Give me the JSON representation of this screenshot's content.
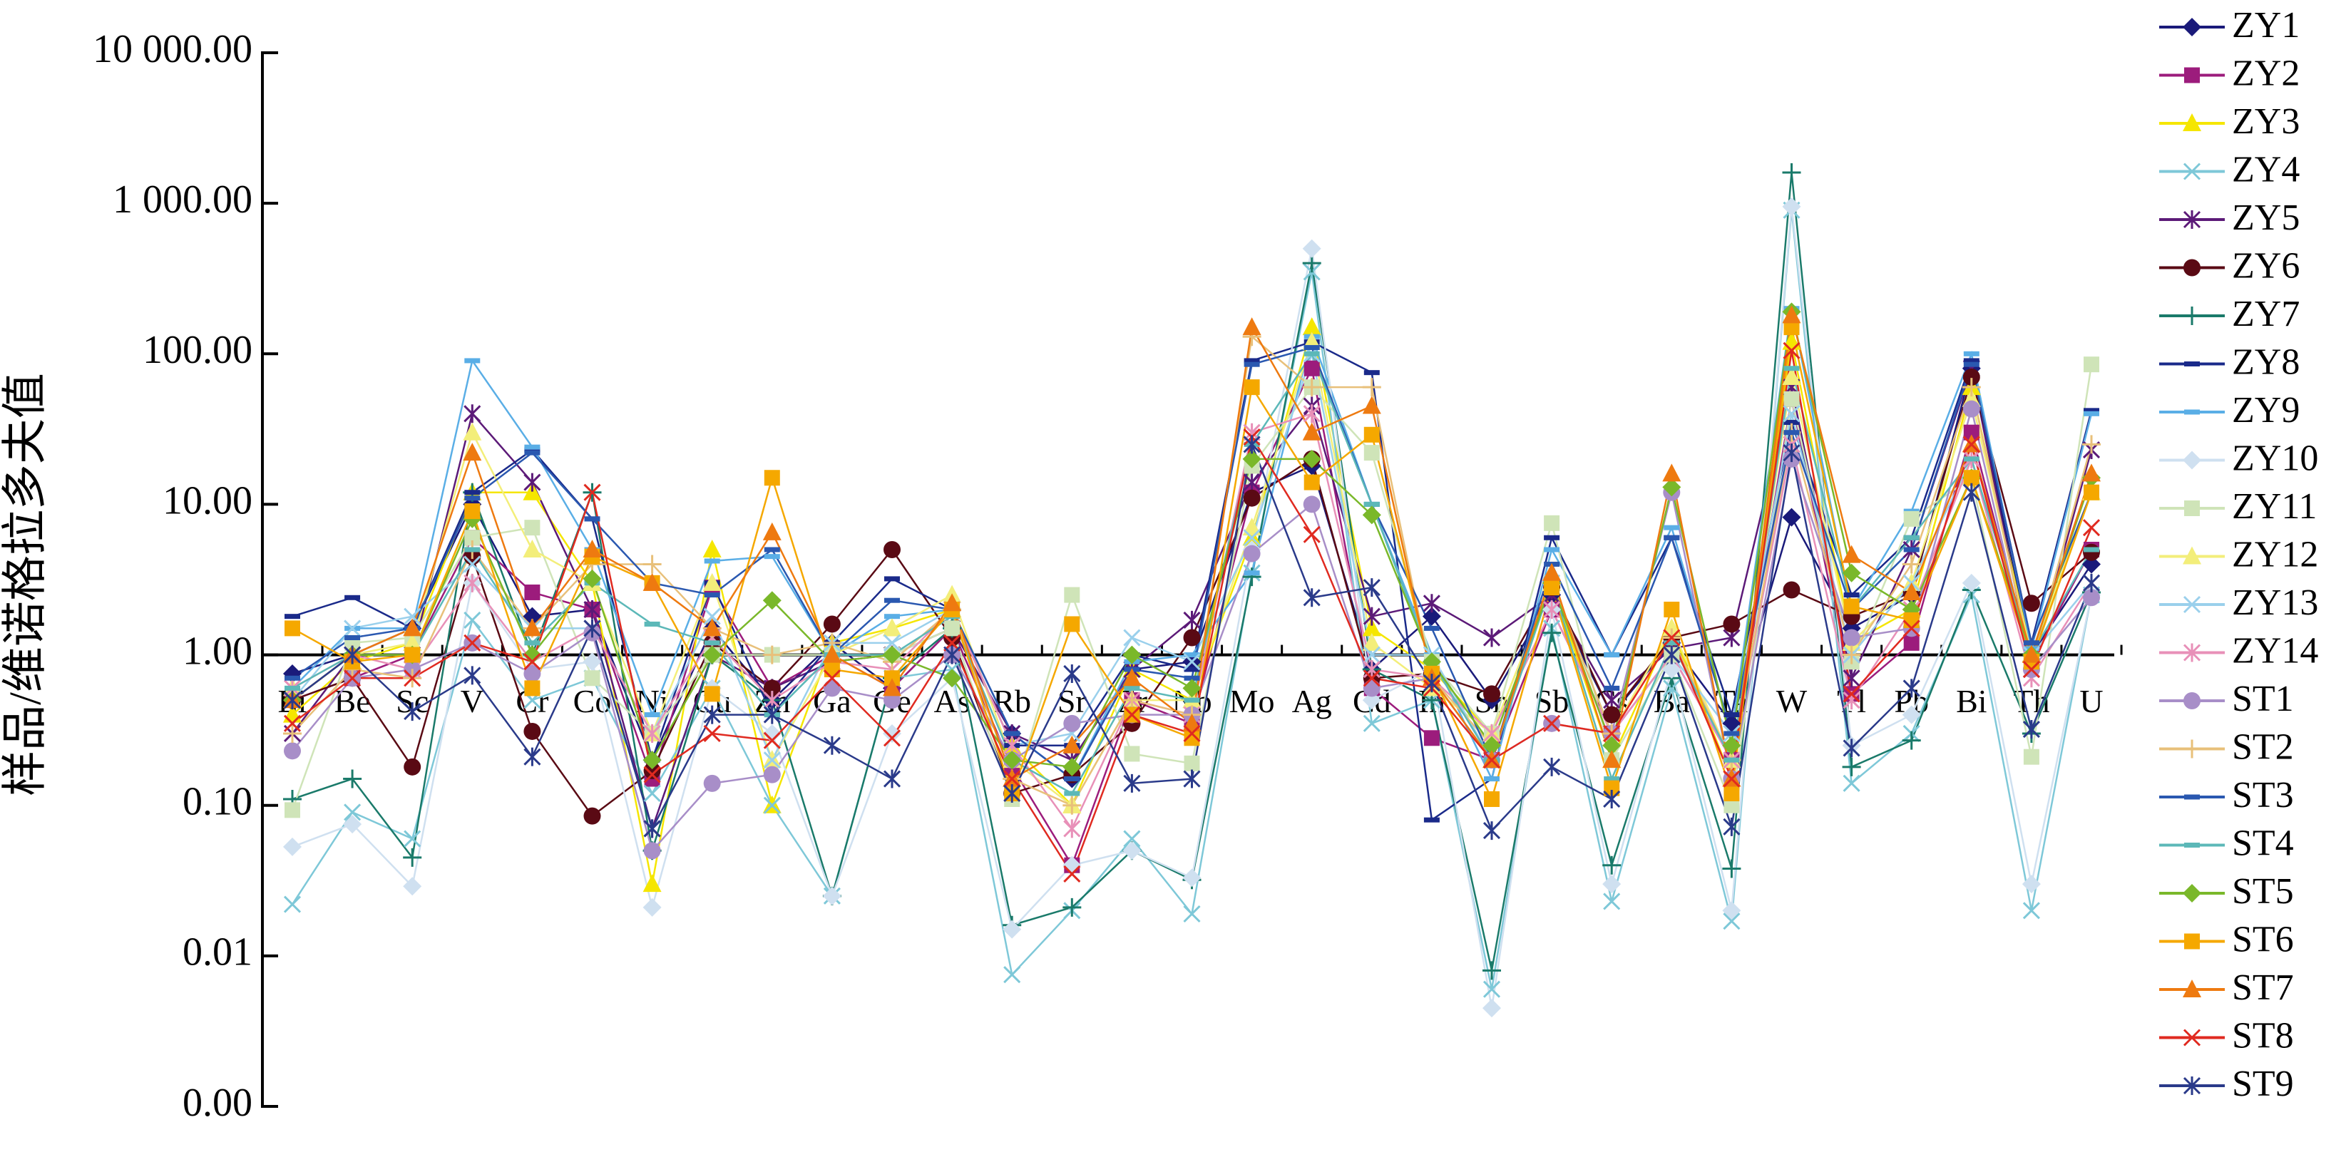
{
  "chart_data": {
    "type": "line",
    "y_label": "样品/维诺格拉多夫值",
    "y_scale": "log",
    "ylim": [
      0.001,
      10000
    ],
    "yticks": [
      {
        "value": 10000,
        "label": "10 000.00"
      },
      {
        "value": 1000,
        "label": "1 000.00"
      },
      {
        "value": 100,
        "label": "100.00"
      },
      {
        "value": 10,
        "label": "10.00"
      },
      {
        "value": 1,
        "label": "1.00"
      },
      {
        "value": 0.1,
        "label": "0.10"
      },
      {
        "value": 0.01,
        "label": "0.01"
      },
      {
        "value": 0.001,
        "label": "0.00"
      }
    ],
    "x_axis_at": 1,
    "legend": "right",
    "categories": [
      "Li",
      "Be",
      "Sc",
      "V",
      "Cr",
      "Co",
      "Ni",
      "Cu",
      "Zn",
      "Ga",
      "Ge",
      "As",
      "Rb",
      "Sr",
      "Zr",
      "Nb",
      "Mo",
      "Ag",
      "Cd",
      "In",
      "Sn",
      "Sb",
      "Cs",
      "Ba",
      "Ta",
      "W",
      "Tl",
      "Pb",
      "Bi",
      "Th",
      "U"
    ],
    "series": [
      {
        "name": "ZY1",
        "color": "#1a1a7a",
        "marker": "diamond",
        "values": [
          0.75,
          1.0,
          1.5,
          10,
          1.8,
          2,
          0.2,
          1.5,
          0.5,
          1.2,
          0.6,
          1.5,
          0.3,
          0.15,
          0.8,
          0.9,
          12,
          18,
          0.8,
          1.8,
          0.5,
          2.5,
          0.4,
          1.2,
          0.35,
          8.2,
          1.5,
          2.5,
          80,
          1.0,
          4
        ]
      },
      {
        "name": "ZY2",
        "color": "#9c1c7c",
        "marker": "square",
        "values": [
          0.5,
          0.7,
          1.0,
          6,
          2.6,
          2,
          0.15,
          2.8,
          0.6,
          1.0,
          0.6,
          1.5,
          0.18,
          0.04,
          0.5,
          0.35,
          12,
          80,
          0.6,
          0.28,
          0.2,
          2.0,
          0.3,
          1.0,
          0.2,
          50,
          0.55,
          1.2,
          30,
          0.9,
          5
        ]
      },
      {
        "name": "ZY3",
        "color": "#f5e600",
        "marker": "triangle",
        "values": [
          0.4,
          0.9,
          1.2,
          12,
          12,
          3,
          0.03,
          5,
          0.1,
          1.2,
          1.5,
          2,
          0.25,
          0.1,
          0.8,
          0.5,
          6,
          150,
          1.5,
          0.8,
          0.3,
          3,
          0.2,
          1.5,
          0.15,
          120,
          1.2,
          2,
          60,
          1.0,
          12
        ]
      },
      {
        "name": "ZY4",
        "color": "#7ec8d8",
        "marker": "x",
        "values": [
          0.022,
          0.09,
          0.06,
          1.7,
          0.5,
          0.7,
          0.12,
          0.6,
          0.1,
          0.025,
          0.7,
          0.8,
          0.0075,
          0.02,
          0.06,
          0.019,
          3.5,
          350,
          0.35,
          0.5,
          0.006,
          1.5,
          0.023,
          0.6,
          0.017,
          900,
          0.14,
          0.3,
          2.5,
          0.02,
          2.5
        ]
      },
      {
        "name": "ZY5",
        "color": "#5c1a78",
        "marker": "star",
        "values": [
          0.3,
          1.0,
          1.0,
          40,
          14,
          2,
          0.07,
          1.0,
          0.6,
          0.9,
          1.0,
          1.5,
          0.3,
          0.2,
          0.8,
          1.7,
          14,
          45,
          1.8,
          2.2,
          1.3,
          2.5,
          0.5,
          1.1,
          1.3,
          60,
          0.7,
          5,
          80,
          0.8,
          23
        ]
      },
      {
        "name": "ZY6",
        "color": "#5a0a14",
        "marker": "circle",
        "values": [
          0.5,
          0.7,
          0.18,
          4.5,
          0.31,
          0.085,
          0.17,
          1.2,
          0.6,
          1.6,
          5,
          1.3,
          0.12,
          0.16,
          0.35,
          1.3,
          11,
          20,
          0.7,
          0.75,
          0.55,
          2.8,
          0.4,
          1.3,
          1.6,
          2.7,
          1.8,
          2.6,
          70,
          2.2,
          4.8
        ]
      },
      {
        "name": "ZY7",
        "color": "#1a7a6a",
        "marker": "plus",
        "values": [
          0.11,
          0.15,
          0.045,
          12,
          1.0,
          12,
          0.05,
          1.0,
          0.5,
          0.025,
          0.7,
          1.5,
          0.016,
          0.021,
          0.05,
          0.032,
          3.3,
          400,
          0.8,
          0.5,
          0.008,
          1.4,
          0.04,
          0.7,
          0.038,
          1600,
          0.18,
          0.27,
          2.7,
          0.3,
          2.6
        ]
      },
      {
        "name": "ZY8",
        "color": "#1a2a8a",
        "marker": "dash",
        "values": [
          1.8,
          2.4,
          1.5,
          12,
          23,
          8,
          0.2,
          3,
          0.4,
          1.2,
          3.2,
          2,
          0.25,
          0.25,
          1.0,
          0.8,
          90,
          120,
          75,
          0.08,
          0.15,
          6,
          1.0,
          6,
          0.4,
          35,
          2.5,
          6,
          90,
          1.2,
          42
        ]
      },
      {
        "name": "ZY9",
        "color": "#5aaee6",
        "marker": "dash",
        "values": [
          0.6,
          1.5,
          1.5,
          90,
          24,
          5,
          0.4,
          4.2,
          4.5,
          1.0,
          1.8,
          2,
          0.3,
          0.15,
          0.9,
          1.0,
          3.5,
          130,
          10,
          1.0,
          0.15,
          5,
          1.0,
          7,
          0.3,
          200,
          2,
          9,
          100,
          1.1,
          40
        ]
      },
      {
        "name": "ZY10",
        "color": "#cfe0f0",
        "marker": "diamond",
        "values": [
          0.053,
          0.075,
          0.029,
          3,
          0.8,
          0.9,
          0.021,
          0.6,
          0.3,
          0.025,
          0.3,
          0.7,
          0.015,
          0.04,
          0.05,
          0.033,
          5,
          500,
          0.5,
          0.8,
          0.0045,
          2,
          0.03,
          0.8,
          0.02,
          950,
          0.25,
          0.4,
          3,
          0.03,
          2.5
        ]
      },
      {
        "name": "ZY11",
        "color": "#cfe4b8",
        "marker": "square",
        "values": [
          0.093,
          1.2,
          1.3,
          6,
          7,
          0.7,
          0.3,
          1.0,
          1.0,
          1.0,
          1.0,
          1.5,
          0.11,
          2.5,
          0.22,
          0.19,
          18,
          60,
          22,
          0.9,
          0.3,
          7.5,
          0.2,
          1.0,
          0.1,
          50,
          0.9,
          8,
          15,
          0.21,
          85
        ]
      },
      {
        "name": "ZY12",
        "color": "#f3ee7a",
        "marker": "triangle",
        "values": [
          0.6,
          1.0,
          1.2,
          30,
          5,
          3,
          0.3,
          3,
          0.2,
          1.0,
          1.5,
          2.5,
          0.2,
          0.1,
          0.5,
          0.5,
          7,
          120,
          1.2,
          0.6,
          0.3,
          3,
          0.3,
          1.5,
          0.2,
          70,
          1.2,
          3,
          50,
          1.0,
          12
        ]
      },
      {
        "name": "ZY13",
        "color": "#9ad0ec",
        "marker": "x",
        "values": [
          0.5,
          1.5,
          1.8,
          4,
          1.5,
          1.5,
          0.3,
          1.8,
          0.2,
          1.2,
          1.2,
          2,
          0.25,
          0.3,
          1.3,
          0.9,
          6,
          100,
          1.0,
          1.0,
          0.2,
          3,
          0.3,
          1.0,
          0.3,
          40,
          1.0,
          3,
          20,
          1.0,
          3
        ]
      },
      {
        "name": "ZY14",
        "color": "#e890b8",
        "marker": "star",
        "values": [
          0.6,
          1.0,
          0.8,
          3,
          0.9,
          1.5,
          0.3,
          1.3,
          0.5,
          0.9,
          0.8,
          2,
          0.25,
          0.07,
          0.5,
          0.4,
          30,
          40,
          0.8,
          0.7,
          0.3,
          2,
          0.3,
          1.0,
          0.2,
          25,
          0.5,
          2,
          20,
          0.7,
          3
        ]
      },
      {
        "name": "ST1",
        "color": "#a88ec8",
        "marker": "circle",
        "values": [
          0.23,
          0.7,
          0.8,
          1.2,
          0.75,
          1.4,
          0.05,
          0.14,
          0.16,
          0.6,
          0.5,
          1.0,
          0.2,
          0.35,
          0.4,
          0.4,
          4.7,
          10,
          0.6,
          0.7,
          0.2,
          0.35,
          0.3,
          12,
          0.15,
          20,
          1.3,
          1.5,
          43,
          0.8,
          2.4
        ]
      },
      {
        "name": "ST2",
        "color": "#e8c07a",
        "marker": "plus",
        "values": [
          0.3,
          0.8,
          0.7,
          5,
          1.5,
          4,
          4,
          1.5,
          1.0,
          1.2,
          0.9,
          2.0,
          0.15,
          0.1,
          0.5,
          0.4,
          130,
          60,
          60,
          0.7,
          0.25,
          3,
          0.3,
          1.3,
          0.2,
          30,
          1.0,
          4,
          60,
          0.9,
          25
        ]
      },
      {
        "name": "ST3",
        "color": "#2a58b0",
        "marker": "dash",
        "values": [
          0.7,
          1.3,
          1.5,
          11,
          22,
          8,
          3,
          2.5,
          5,
          1.0,
          2.3,
          2,
          0.3,
          0.15,
          0.8,
          0.7,
          85,
          110,
          10,
          1.5,
          0.2,
          4,
          0.6,
          6,
          0.3,
          30,
          2,
          5,
          85,
          1.2,
          12
        ]
      },
      {
        "name": "ST4",
        "color": "#5cb8b8",
        "marker": "dash",
        "values": [
          0.6,
          1.0,
          1.0,
          5,
          1.2,
          3,
          1.6,
          1.2,
          0.4,
          1.0,
          1.0,
          1.8,
          0.2,
          0.12,
          0.6,
          0.5,
          25,
          100,
          10,
          0.9,
          0.2,
          3,
          0.15,
          1.2,
          0.2,
          80,
          2,
          6,
          20,
          1.0,
          5
        ]
      },
      {
        "name": "ST5",
        "color": "#7ab82a",
        "marker": "diamond",
        "values": [
          0.5,
          1.0,
          1.0,
          8,
          1.0,
          3.2,
          0.2,
          1.0,
          2.3,
          0.9,
          1.0,
          0.7,
          0.2,
          0.18,
          1.0,
          0.6,
          20,
          20,
          8.5,
          0.9,
          0.25,
          3,
          0.25,
          13,
          0.25,
          190,
          3.5,
          2,
          15,
          1.0,
          15
        ]
      },
      {
        "name": "ST6",
        "color": "#f5a800",
        "marker": "square",
        "values": [
          1.5,
          0.9,
          1.0,
          9,
          0.6,
          4.5,
          3.0,
          0.55,
          15,
          0.8,
          0.7,
          2,
          0.12,
          1.6,
          0.4,
          0.28,
          60,
          14,
          29,
          0.75,
          0.11,
          2.8,
          0.13,
          2,
          0.12,
          150,
          2.1,
          1.7,
          15,
          0.9,
          12
        ]
      },
      {
        "name": "ST7",
        "color": "#ee7a10",
        "marker": "triangle",
        "values": [
          0.5,
          1.0,
          1.5,
          22,
          1.5,
          5,
          3,
          1.5,
          6.5,
          1.0,
          0.6,
          2.2,
          0.15,
          0.25,
          0.7,
          0.35,
          150,
          30,
          45,
          0.7,
          0.2,
          3.5,
          0.2,
          16,
          0.15,
          180,
          4.6,
          2.6,
          25,
          1.0,
          16
        ]
      },
      {
        "name": "ST8",
        "color": "#e02a20",
        "marker": "x",
        "values": [
          0.35,
          0.7,
          0.7,
          1.2,
          0.9,
          12,
          0.16,
          0.3,
          0.27,
          0.7,
          0.28,
          1.2,
          0.15,
          0.035,
          0.4,
          0.3,
          28,
          6.3,
          0.7,
          0.6,
          0.2,
          0.35,
          0.3,
          1.3,
          0.15,
          105,
          0.55,
          1.5,
          25,
          0.8,
          7
        ]
      },
      {
        "name": "ST9",
        "color": "#2a3a8a",
        "marker": "star",
        "values": [
          0.5,
          1.0,
          0.42,
          0.73,
          0.21,
          1.5,
          0.07,
          0.4,
          0.4,
          0.25,
          0.15,
          1.0,
          0.12,
          0.75,
          0.14,
          0.15,
          25,
          2.4,
          2.8,
          0.65,
          0.068,
          0.18,
          0.11,
          1.0,
          0.072,
          22,
          0.24,
          0.6,
          12,
          0.32,
          3
        ]
      }
    ]
  }
}
